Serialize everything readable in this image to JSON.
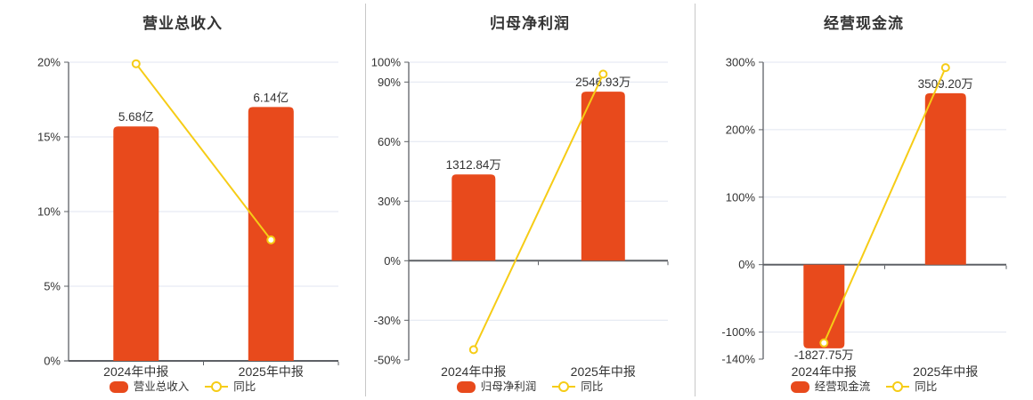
{
  "colors": {
    "bar": "#E84A1C",
    "line": "#F6CC16",
    "grid": "#E1E6F0",
    "axis": "#5E6166",
    "text": "#333333",
    "divider": "#C8C8C8",
    "marker_fill": "#FFFFFF"
  },
  "chart_data": [
    {
      "type": "bar",
      "title": "营业总收入",
      "categories": [
        "2024年中报",
        "2025年中报"
      ],
      "bar_series": {
        "name": "营业总收入",
        "display_values": [
          "5.68亿",
          "6.14亿"
        ],
        "plot_pos_pct": [
          15.7,
          17.0
        ]
      },
      "line_series": {
        "name": "同比",
        "values_pct": [
          19.9,
          8.1
        ]
      },
      "y_ticks_pct": [
        20,
        15,
        10,
        5,
        0
      ],
      "y_range_pct": [
        0,
        20
      ],
      "legend": [
        "营业总收入",
        "同比"
      ],
      "legend_position": "bottom",
      "grid": true
    },
    {
      "type": "bar",
      "title": "归母净利润",
      "categories": [
        "2024年中报",
        "2025年中报"
      ],
      "bar_series": {
        "name": "归母净利润",
        "display_values": [
          "1312.84万",
          "2546.93万"
        ],
        "plot_pos_pct": [
          43.5,
          85.2
        ]
      },
      "line_series": {
        "name": "同比",
        "values_pct": [
          -44.8,
          94.0
        ]
      },
      "y_ticks_pct": [
        100,
        90,
        60,
        30,
        0,
        -30,
        -50
      ],
      "y_range_pct": [
        -50,
        100
      ],
      "legend": [
        "归母净利润",
        "同比"
      ],
      "legend_position": "bottom",
      "grid": true
    },
    {
      "type": "bar",
      "title": "经营现金流",
      "categories": [
        "2024年中报",
        "2025年中报"
      ],
      "bar_series": {
        "name": "经营现金流",
        "display_values": [
          "-1827.75万",
          "3509.20万"
        ],
        "plot_pos_pct": [
          -124,
          254
        ]
      },
      "line_series": {
        "name": "同比",
        "values_pct": [
          -116,
          292
        ]
      },
      "y_ticks_pct": [
        300,
        200,
        100,
        0,
        -100,
        -140
      ],
      "y_range_pct": [
        -140,
        300
      ],
      "legend": [
        "经营现金流",
        "同比"
      ],
      "legend_position": "bottom",
      "grid": true
    }
  ]
}
